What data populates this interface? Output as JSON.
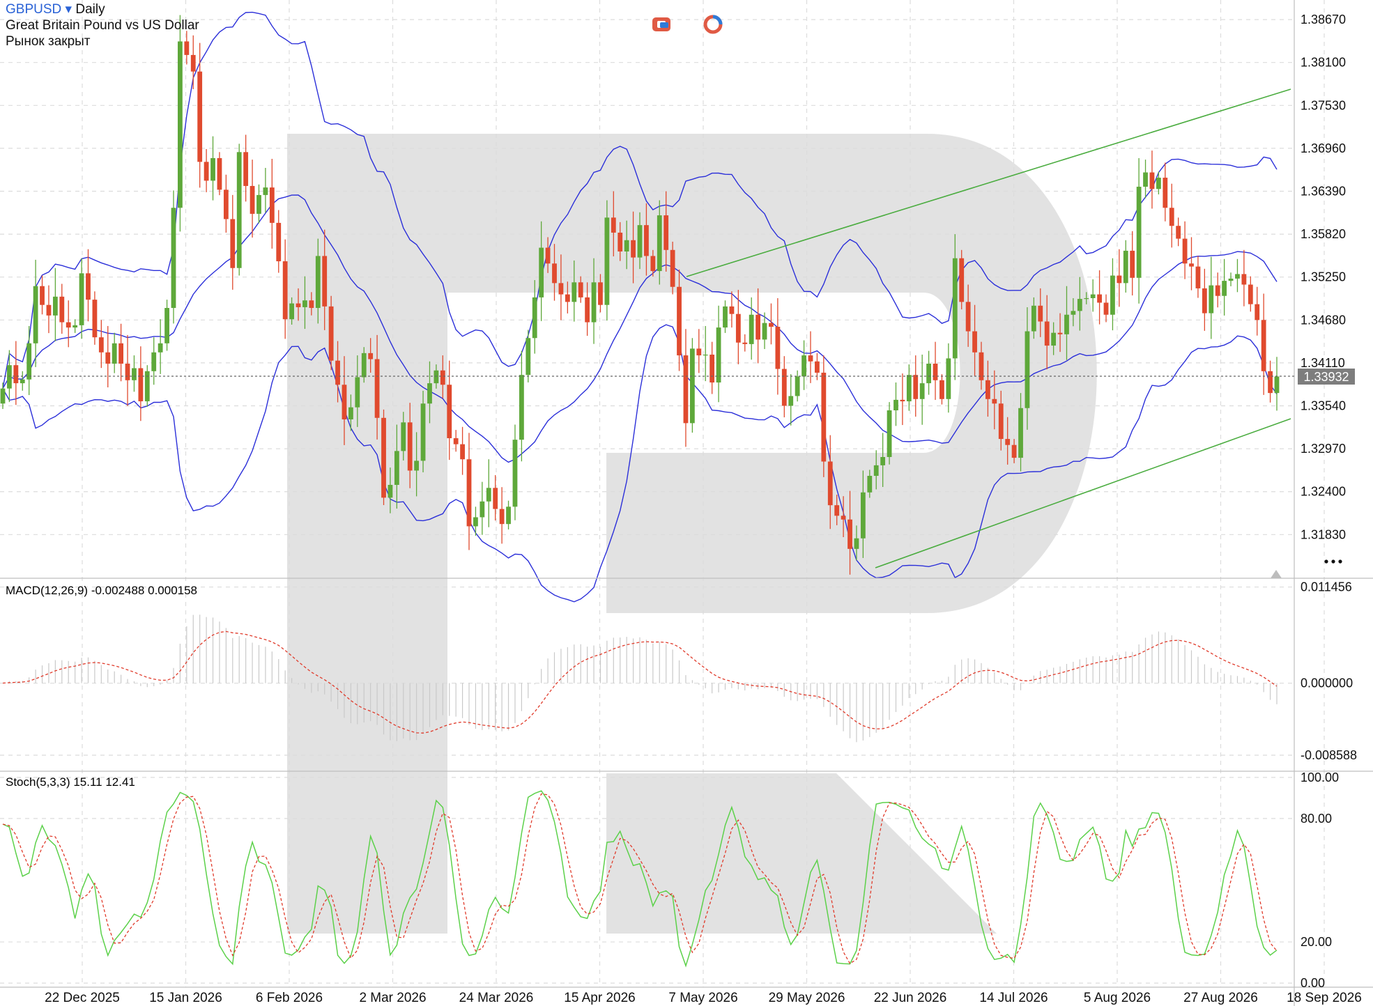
{
  "header": {
    "symbol": "GBPUSD",
    "timeframe": "Daily",
    "description": "Great Britain Pound vs US Dollar",
    "status": "Рынок закрыт",
    "more_icon": "more-dots-icon"
  },
  "price_panel": {
    "last_price": "1.33932",
    "ticks": [
      "1.38670",
      "1.38100",
      "1.37530",
      "1.36960",
      "1.36390",
      "1.35820",
      "1.35250",
      "1.34680",
      "1.34110",
      "1.33540",
      "1.32970",
      "1.32400",
      "1.31830"
    ],
    "last_value": 1.33932,
    "ylim": [
      1.3125,
      1.3893
    ],
    "indicators": [
      "Bollinger Bands",
      "Trend channel"
    ],
    "colors": {
      "bull": "#5ea83a",
      "bear": "#e04a2e",
      "bands": "#2b2fd9",
      "trend": "#4aac3f"
    }
  },
  "macd_panel": {
    "label": "MACD(12,26,9) -0.002488 0.000158",
    "ticks": [
      "0.011456",
      "0.000000",
      "-0.008588"
    ],
    "ylim": [
      -0.0105,
      0.0125
    ]
  },
  "stoch_panel": {
    "label": "Stoch(5,3,3) 15.11 12.41",
    "ticks": [
      "100.00",
      "80.00",
      "20.00",
      "0.00"
    ],
    "ylim": [
      -2,
      103
    ]
  },
  "x_axis": {
    "labels": [
      "22 Dec 2025",
      "15 Jan 2026",
      "6 Feb 2026",
      "2 Mar 2026",
      "24 Mar 2026",
      "15 Apr 2026",
      "7 May 2026",
      "29 May 2026",
      "22 Jun 2026",
      "14 Jul 2026",
      "5 Aug 2026",
      "27 Aug 2026",
      "18 Sep 2026"
    ]
  },
  "chart_data": {
    "type": "candlestick",
    "title": "GBPUSD Daily",
    "candles_close": [
      1.3377,
      1.3408,
      1.3384,
      1.3389,
      1.3437,
      1.3513,
      1.3488,
      1.3474,
      1.3499,
      1.3465,
      1.3458,
      1.3461,
      1.353,
      1.3495,
      1.3445,
      1.3425,
      1.341,
      1.3437,
      1.341,
      1.3388,
      1.3404,
      1.336,
      1.34,
      1.3425,
      1.3437,
      1.3484,
      1.3617,
      1.3838,
      1.382,
      1.3798,
      1.3678,
      1.3653,
      1.3683,
      1.3641,
      1.3602,
      1.3537,
      1.3691,
      1.3646,
      1.3609,
      1.3634,
      1.3644,
      1.3597,
      1.3546,
      1.3469,
      1.349,
      1.3485,
      1.3494,
      1.3484,
      1.3553,
      1.3486,
      1.3414,
      1.3382,
      1.3336,
      1.3352,
      1.3392,
      1.3424,
      1.3416,
      1.3338,
      1.3232,
      1.3249,
      1.3294,
      1.3332,
      1.3268,
      1.3281,
      1.3357,
      1.3384,
      1.3401,
      1.3382,
      1.3311,
      1.3303,
      1.3283,
      1.3194,
      1.3206,
      1.3227,
      1.3245,
      1.3217,
      1.3197,
      1.322,
      1.3309,
      1.3395,
      1.3444,
      1.3498,
      1.3564,
      1.3543,
      1.3517,
      1.3502,
      1.3492,
      1.3518,
      1.3498,
      1.3465,
      1.3518,
      1.3488,
      1.3604,
      1.3584,
      1.3559,
      1.3574,
      1.3551,
      1.3594,
      1.3553,
      1.3533,
      1.3607,
      1.3561,
      1.3512,
      1.3421,
      1.3331,
      1.343,
      1.3421,
      1.3422,
      1.3385,
      1.3458,
      1.3486,
      1.3476,
      1.3438,
      1.3436,
      1.3475,
      1.3442,
      1.3464,
      1.3459,
      1.3403,
      1.3354,
      1.3367,
      1.3393,
      1.3421,
      1.3413,
      1.3398,
      1.328,
      1.3222,
      1.3208,
      1.3203,
      1.3164,
      1.3178,
      1.3239,
      1.3261,
      1.3275,
      1.3286,
      1.3348,
      1.3362,
      1.336,
      1.3395,
      1.3363,
      1.3384,
      1.341,
      1.3388,
      1.3363,
      1.3417,
      1.355,
      1.3492,
      1.3453,
      1.3425,
      1.3388,
      1.3363,
      1.3357,
      1.331,
      1.3302,
      1.3285,
      1.3351,
      1.3453,
      1.3487,
      1.3466,
      1.3434,
      1.3451,
      1.3449,
      1.3475,
      1.348,
      1.3496,
      1.3497,
      1.3502,
      1.3491,
      1.3475,
      1.3527,
      1.3517,
      1.356,
      1.3524,
      1.3645,
      1.3664,
      1.3642,
      1.3657,
      1.3617,
      1.3593,
      1.3576,
      1.3543,
      1.3539,
      1.351,
      1.3477,
      1.3514,
      1.35,
      1.352,
      1.3523,
      1.3529,
      1.3515,
      1.3489,
      1.3468,
      1.34,
      1.3371,
      1.3393
    ],
    "last_close": 1.33932,
    "bollinger": {
      "upper_max": 1.3893,
      "lower_min": 1.3125
    },
    "macd": {
      "macd": -0.002488,
      "signal": 0.000158
    },
    "stoch": {
      "k": 15.11,
      "d": 12.41
    }
  }
}
